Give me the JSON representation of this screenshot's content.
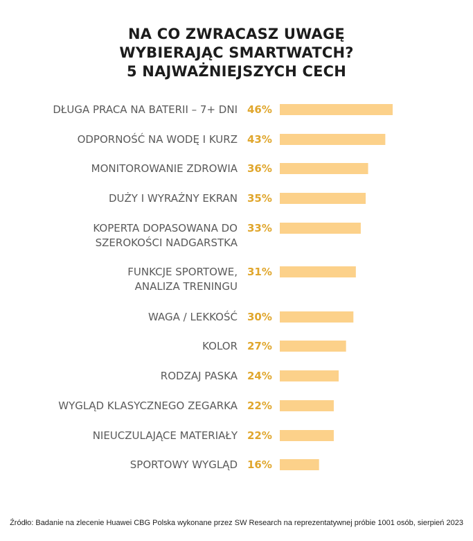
{
  "title_lines": [
    "NA CO ZWRACASZ UWAGĘ",
    "WYBIERAJĄC SMARTWATCH?",
    "5 NAJWAŻNIEJSZYCH CECH"
  ],
  "chart_data": {
    "type": "bar",
    "orientation": "horizontal",
    "unit": "%",
    "categories": [
      [
        "DŁUGA PRACA NA BATERII – 7+ DNI"
      ],
      [
        "ODPORNOŚĆ NA WODĘ I KURZ"
      ],
      [
        "MONITOROWANIE ZDROWIA"
      ],
      [
        "DUŻY I WYRAŹNY EKRAN"
      ],
      [
        "KOPERTA DOPASOWANA DO",
        "SZEROKOŚCI NADGARSTKA"
      ],
      [
        "FUNKCJE SPORTOWE,",
        "ANALIZA TRENINGU"
      ],
      [
        "WAGA / LEKKOŚĆ"
      ],
      [
        "KOLOR"
      ],
      [
        "RODZAJ PASKA"
      ],
      [
        "WYGLĄD KLASYCZNEGO ZEGARKA"
      ],
      [
        "NIEUCZULAJĄCE MATERIAŁY"
      ],
      [
        "SPORTOWY WYGLĄD"
      ]
    ],
    "values": [
      46,
      43,
      36,
      35,
      33,
      31,
      30,
      27,
      24,
      22,
      22,
      16
    ],
    "value_labels": [
      "46%",
      "43%",
      "36%",
      "35%",
      "33%",
      "31%",
      "30%",
      "27%",
      "24%",
      "22%",
      "22%",
      "16%"
    ],
    "xlim": [
      0,
      46
    ],
    "grid": false,
    "colors": {
      "bar": "#fcd18a",
      "value_label": "#e0a62c",
      "category_label": "#5a5a5a"
    }
  },
  "source": "Źródło: Badanie na zlecenie Huawei CBG Polska wykonane przez SW Research na reprezentatywnej próbie 1001 osób, sierpień 2023"
}
